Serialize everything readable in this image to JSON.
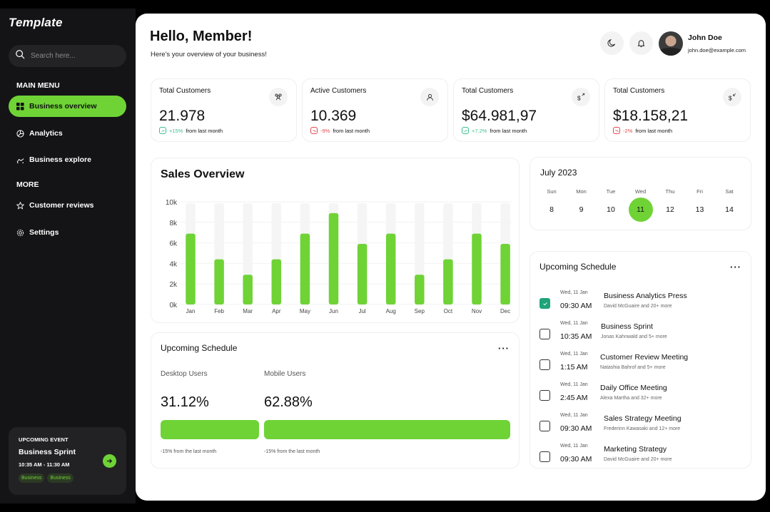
{
  "app": {
    "brand": "Template"
  },
  "sidebar": {
    "search_placeholder": "Search here...",
    "main_menu_label": "MAIN MENU",
    "more_label": "MORE",
    "main_items": [
      {
        "label": "Business overview",
        "icon": "grid-icon",
        "active": true
      },
      {
        "label": "Analytics",
        "icon": "pie-chart-icon",
        "active": false
      },
      {
        "label": "Business explore",
        "icon": "explore-icon",
        "active": false
      }
    ],
    "more_items": [
      {
        "label": "Customer reviews",
        "icon": "star-icon"
      },
      {
        "label": "Settings",
        "icon": "gear-icon"
      }
    ],
    "event": {
      "label": "UPCOMING EVENT",
      "title": "Business Sprint",
      "time": "10:35 AM - 11:30 AM",
      "tags": [
        "Business",
        "Business"
      ]
    }
  },
  "header": {
    "greeting": "Hello, Member!",
    "subtitle": "Here's your overview of your business!",
    "user": {
      "name": "John Doe",
      "email": "john.doe@example.com"
    }
  },
  "colors": {
    "accent": "#6fd336",
    "up": "#3dbf8c",
    "down": "#e5484d",
    "checked": "#1fa37a"
  },
  "stats": [
    {
      "title": "Total Customers",
      "value": "21.978",
      "change": "+15%",
      "direction": "up",
      "suffix": "from last month",
      "icon": "users-icon"
    },
    {
      "title": "Active Customers",
      "value": "10.369",
      "change": "-9%",
      "direction": "down",
      "suffix": "from last month",
      "icon": "user-icon"
    },
    {
      "title": "Total Customers",
      "value": "$64.981,97",
      "change": "+7.2%",
      "direction": "up",
      "suffix": "from last month",
      "icon": "dollar-up-icon"
    },
    {
      "title": "Total Customers",
      "value": "$18.158,21",
      "change": "-2%",
      "direction": "down",
      "suffix": "from last month",
      "icon": "dollar-down-icon"
    }
  ],
  "chart_data": {
    "type": "bar",
    "title": "Sales Overview",
    "categories": [
      "Jan",
      "Feb",
      "Mar",
      "Apr",
      "May",
      "Jun",
      "Jul",
      "Aug",
      "Sep",
      "Oct",
      "Nov",
      "Dec"
    ],
    "values": [
      6900,
      4400,
      2900,
      4400,
      6900,
      8900,
      5900,
      6900,
      2900,
      4400,
      6900,
      5900
    ],
    "yticks": [
      "0k",
      "2k",
      "4k",
      "6k",
      "8k",
      "10k"
    ],
    "ylim": [
      0,
      10000
    ],
    "xlabel": "",
    "ylabel": "",
    "grid": true,
    "background_track": true
  },
  "calendar": {
    "title": "July 2023",
    "days": [
      {
        "dow": "Sun",
        "date": "8"
      },
      {
        "dow": "Mon",
        "date": "9"
      },
      {
        "dow": "Tue",
        "date": "10"
      },
      {
        "dow": "Wed",
        "date": "11",
        "selected": true
      },
      {
        "dow": "Thu",
        "date": "12"
      },
      {
        "dow": "Fri",
        "date": "13"
      },
      {
        "dow": "Sat",
        "date": "14"
      }
    ]
  },
  "users_card": {
    "title": "Upcoming Schedule",
    "desktop": {
      "label": "Desktop Users",
      "percent": "31.12%",
      "note": "-15% from the last month"
    },
    "mobile": {
      "label": "Mobile Users",
      "percent": "62.88%",
      "note": "-15% from the last month"
    }
  },
  "schedule": {
    "title": "Upcoming Schedule",
    "items": [
      {
        "date": "Wed, 11 Jan",
        "time": "09:30 AM",
        "name": "Business Analytics Press",
        "who": "David McGuaire and 20+ more",
        "checked": true
      },
      {
        "date": "Wed, 11 Jan",
        "time": "10:35 AM",
        "name": "Business Sprint",
        "who": "Jonas Kahnwald and 5+ more",
        "checked": false
      },
      {
        "date": "Wed, 11 Jan",
        "time": "1:15 AM",
        "name": "Customer Review Meeting",
        "who": "Natashia Bahrof and 5+ more",
        "checked": false
      },
      {
        "date": "Wed, 11 Jan",
        "time": "2:45 AM",
        "name": "Daily Office Meeting",
        "who": "Alexa Martha and 32+ more",
        "checked": false
      },
      {
        "date": "Wed, 11 Jan",
        "time": "09:30 AM",
        "name": "Sales Strategy Meeting",
        "who": "Frederinn Kawasaki and 12+ more",
        "checked": false
      },
      {
        "date": "Wed, 11 Jan",
        "time": "09:30 AM",
        "name": "Marketing Strategy",
        "who": "David McGuaire and 20+ more",
        "checked": false
      }
    ]
  }
}
